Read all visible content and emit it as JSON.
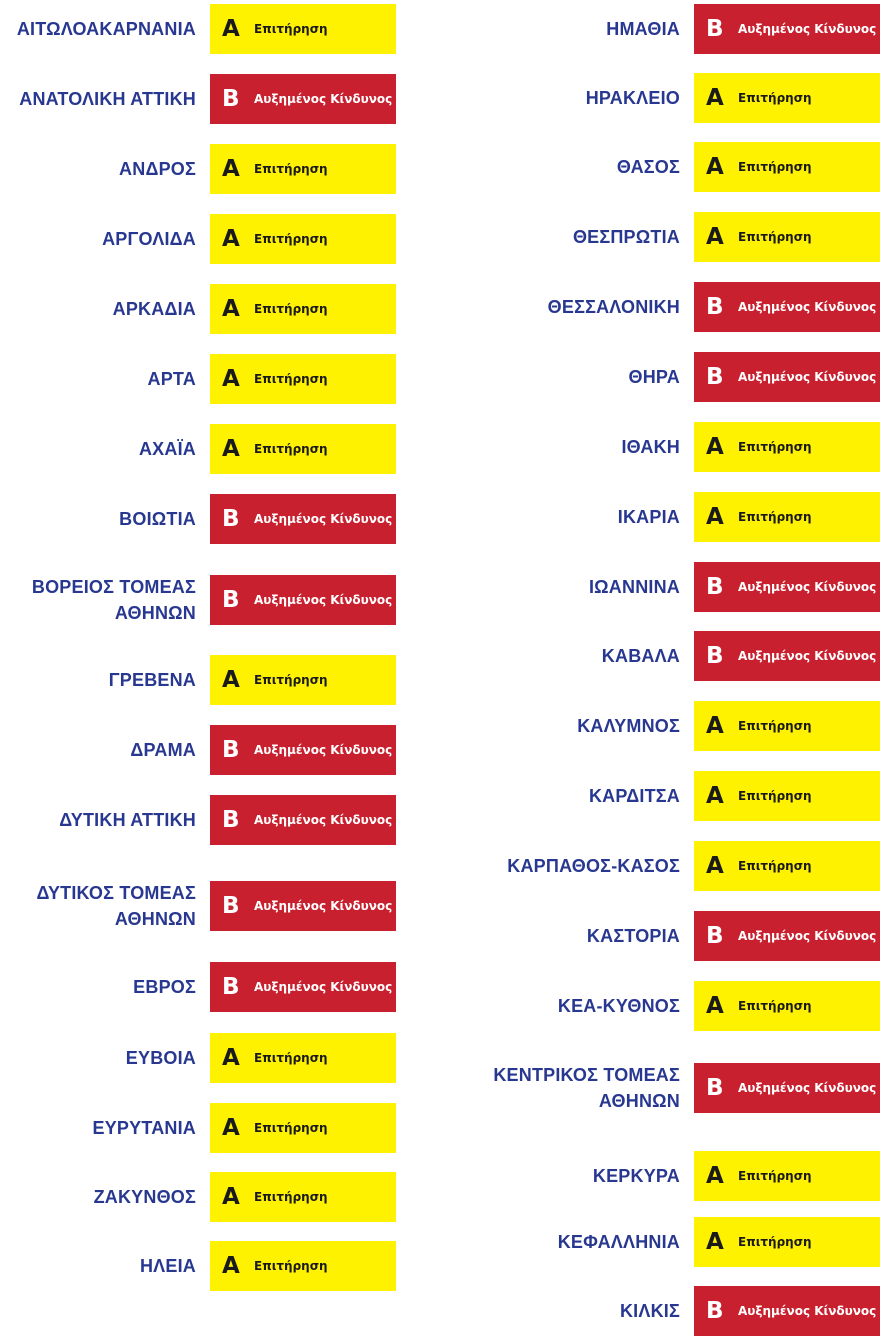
{
  "colors": {
    "region_text": "#283891",
    "level_A_bg": "#fff200",
    "level_A_text": "#1a1a1a",
    "level_B_bg": "#c8202f",
    "level_B_text": "#ffffff"
  },
  "levels": {
    "A": {
      "letter": "A",
      "label": "Επιτήρηση"
    },
    "B": {
      "letter": "B",
      "label": "Αυξημένος Κίνδυνος"
    }
  },
  "left_column": [
    {
      "name": [
        "ΑΙΤΩΛΟΑΚΑΡΝΑΝΙΑ"
      ],
      "level": "A",
      "letter": "A",
      "label": "Επιτήρηση"
    },
    {
      "name": [
        "ΑΝΑΤΟΛΙΚΗ ΑΤΤΙΚΗ"
      ],
      "level": "B",
      "letter": "B",
      "label": "Αυξημένος Κίνδυνος"
    },
    {
      "name": [
        "ΑΝΔΡΟΣ"
      ],
      "level": "A",
      "letter": "A",
      "label": "Επιτήρηση"
    },
    {
      "name": [
        "ΑΡΓΟΛΙΔΑ"
      ],
      "level": "A",
      "letter": "A",
      "label": "Επιτήρηση"
    },
    {
      "name": [
        "ΑΡΚΑΔΙΑ"
      ],
      "level": "A",
      "letter": "A",
      "label": "Επιτήρηση"
    },
    {
      "name": [
        "ΑΡΤΑ"
      ],
      "level": "A",
      "letter": "A",
      "label": "Επιτήρηση"
    },
    {
      "name": [
        "ΑΧΑΪΑ"
      ],
      "level": "A",
      "letter": "A",
      "label": "Επιτήρηση"
    },
    {
      "name": [
        "ΒΟΙΩΤΙΑ"
      ],
      "level": "B",
      "letter": "B",
      "label": "Αυξημένος Κίνδυνος"
    },
    {
      "name": [
        "ΒΟΡΕΙΟΣ ΤΟΜΕΑΣ",
        "ΑΘΗΝΩΝ"
      ],
      "level": "B",
      "letter": "B",
      "label": "Αυξημένος Κίνδυνος"
    },
    {
      "name": [
        "ΓΡΕΒΕΝΑ"
      ],
      "level": "A",
      "letter": "A",
      "label": "Επιτήρηση"
    },
    {
      "name": [
        "ΔΡΑΜΑ"
      ],
      "level": "B",
      "letter": "B",
      "label": "Αυξημένος Κίνδυνος"
    },
    {
      "name": [
        "ΔΥΤΙΚΗ ΑΤΤΙΚΗ"
      ],
      "level": "B",
      "letter": "B",
      "label": "Αυξημένος Κίνδυνος"
    },
    {
      "name": [
        "ΔΥΤΙΚΟΣ ΤΟΜΕΑΣ",
        "ΑΘΗΝΩΝ"
      ],
      "level": "B",
      "letter": "B",
      "label": "Αυξημένος Κίνδυνος"
    },
    {
      "name": [
        "ΕΒΡΟΣ"
      ],
      "level": "B",
      "letter": "B",
      "label": "Αυξημένος Κίνδυνος"
    },
    {
      "name": [
        "ΕΥΒΟΙΑ"
      ],
      "level": "A",
      "letter": "A",
      "label": "Επιτήρηση"
    },
    {
      "name": [
        "ΕΥΡΥΤΑΝΙΑ"
      ],
      "level": "A",
      "letter": "A",
      "label": "Επιτήρηση"
    },
    {
      "name": [
        "ΖΑΚΥΝΘΟΣ"
      ],
      "level": "A",
      "letter": "A",
      "label": "Επιτήρηση"
    },
    {
      "name": [
        "ΗΛΕΙΑ"
      ],
      "level": "A",
      "letter": "A",
      "label": "Επιτήρηση"
    }
  ],
  "right_column": [
    {
      "name": [
        "ΗΜΑΘΙΑ"
      ],
      "level": "B",
      "letter": "B",
      "label": "Αυξημένος Κίνδυνος"
    },
    {
      "name": [
        "ΗΡΑΚΛΕΙΟ"
      ],
      "level": "A",
      "letter": "A",
      "label": "Επιτήρηση"
    },
    {
      "name": [
        "ΘΑΣΟΣ"
      ],
      "level": "A",
      "letter": "A",
      "label": "Επιτήρηση"
    },
    {
      "name": [
        "ΘΕΣΠΡΩΤΙΑ"
      ],
      "level": "A",
      "letter": "A",
      "label": "Επιτήρηση"
    },
    {
      "name": [
        "ΘΕΣΣΑΛΟΝΙΚΗ"
      ],
      "level": "B",
      "letter": "B",
      "label": "Αυξημένος Κίνδυνος"
    },
    {
      "name": [
        "ΘΗΡΑ"
      ],
      "level": "B",
      "letter": "B",
      "label": "Αυξημένος Κίνδυνος"
    },
    {
      "name": [
        "ΙΘΑΚΗ"
      ],
      "level": "A",
      "letter": "A",
      "label": "Επιτήρηση"
    },
    {
      "name": [
        "ΙΚΑΡΙΑ"
      ],
      "level": "A",
      "letter": "A",
      "label": "Επιτήρηση"
    },
    {
      "name": [
        "ΙΩΑΝΝΙΝΑ"
      ],
      "level": "B",
      "letter": "B",
      "label": "Αυξημένος Κίνδυνος"
    },
    {
      "name": [
        "ΚΑΒΑΛΑ"
      ],
      "level": "B",
      "letter": "B",
      "label": "Αυξημένος Κίνδυνος"
    },
    {
      "name": [
        "ΚΑΛΥΜΝΟΣ"
      ],
      "level": "A",
      "letter": "A",
      "label": "Επιτήρηση"
    },
    {
      "name": [
        "ΚΑΡΔΙΤΣΑ"
      ],
      "level": "A",
      "letter": "A",
      "label": "Επιτήρηση"
    },
    {
      "name": [
        "ΚΑΡΠΑΘΟΣ-ΚΑΣΟΣ"
      ],
      "level": "A",
      "letter": "A",
      "label": "Επιτήρηση"
    },
    {
      "name": [
        "ΚΑΣΤΟΡΙΑ"
      ],
      "level": "B",
      "letter": "B",
      "label": "Αυξημένος Κίνδυνος"
    },
    {
      "name": [
        "ΚΕΑ-ΚΥΘΝΟΣ"
      ],
      "level": "A",
      "letter": "A",
      "label": "Επιτήρηση"
    },
    {
      "name": [
        "ΚΕΝΤΡΙΚΟΣ ΤΟΜΕΑΣ",
        "ΑΘΗΝΩΝ"
      ],
      "level": "B",
      "letter": "B",
      "label": "Αυξημένος Κίνδυνος"
    },
    {
      "name": [
        "ΚΕΡΚΥΡΑ"
      ],
      "level": "A",
      "letter": "A",
      "label": "Επιτήρηση"
    },
    {
      "name": [
        "ΚΕΦΑΛΛΗΝΙΑ"
      ],
      "level": "A",
      "letter": "A",
      "label": "Επιτήρηση"
    },
    {
      "name": [
        "ΚΙΛΚΙΣ"
      ],
      "level": "B",
      "letter": "B",
      "label": "Αυξημένος Κίνδυνος"
    }
  ]
}
